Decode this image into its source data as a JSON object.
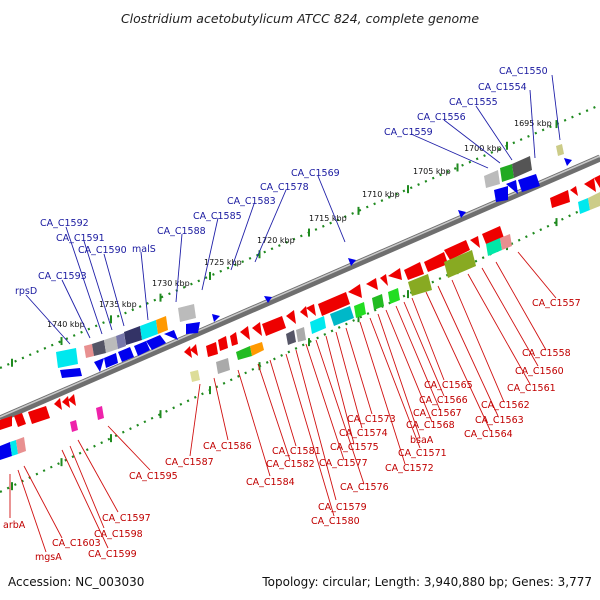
{
  "title": "Clostridium acetobutylicum ATCC 824, complete genome",
  "footer": {
    "accession": "Accession: NC_003030",
    "summary": "Topology: circular; Length: 3,940,880 bp; Genes: 3,777"
  },
  "colors": {
    "forward_gene": "#0000ee",
    "reverse_gene": "#ee0000",
    "backbone": "#8a8a8a",
    "tick": "#1f8a1f",
    "blue_label": "#1a1aa0",
    "red_label": "#c00000"
  },
  "kbp_labels": [
    "1695 kbp",
    "1700 kbp",
    "1705 kbp",
    "1710 kbp",
    "1715 kbp",
    "1720 kbp",
    "1725 kbp",
    "1730 kbp",
    "1735 kbp",
    "1740 kbp"
  ],
  "top_genes": [
    "CA_C1550",
    "CA_C1554",
    "CA_C1555",
    "CA_C1556",
    "CA_C1559",
    "CA_C1569",
    "CA_C1578",
    "CA_C1583",
    "CA_C1585",
    "CA_C1588",
    "malS",
    "CA_C1590",
    "CA_C1591",
    "CA_C1592",
    "CA_C1593",
    "rpsD"
  ],
  "bottom_genes": [
    "CA_C1557",
    "CA_C1558",
    "CA_C1560",
    "CA_C1561",
    "CA_C1562",
    "CA_C1563",
    "CA_C1564",
    "CA_C1565",
    "CA_C1566",
    "CA_C1567",
    "CA_C1568",
    "bsaA",
    "CA_C1571",
    "CA_C1572",
    "CA_C1573",
    "CA_C1574",
    "CA_C1575",
    "CA_C1576",
    "CA_C1577",
    "CA_C1579",
    "CA_C1580",
    "CA_C1581",
    "CA_C1582",
    "CA_C1584",
    "CA_C1586",
    "CA_C1587",
    "CA_C1595",
    "CA_C1597",
    "CA_C1598",
    "CA_C1599",
    "CA_C1603",
    "mgsA",
    "arbA"
  ]
}
